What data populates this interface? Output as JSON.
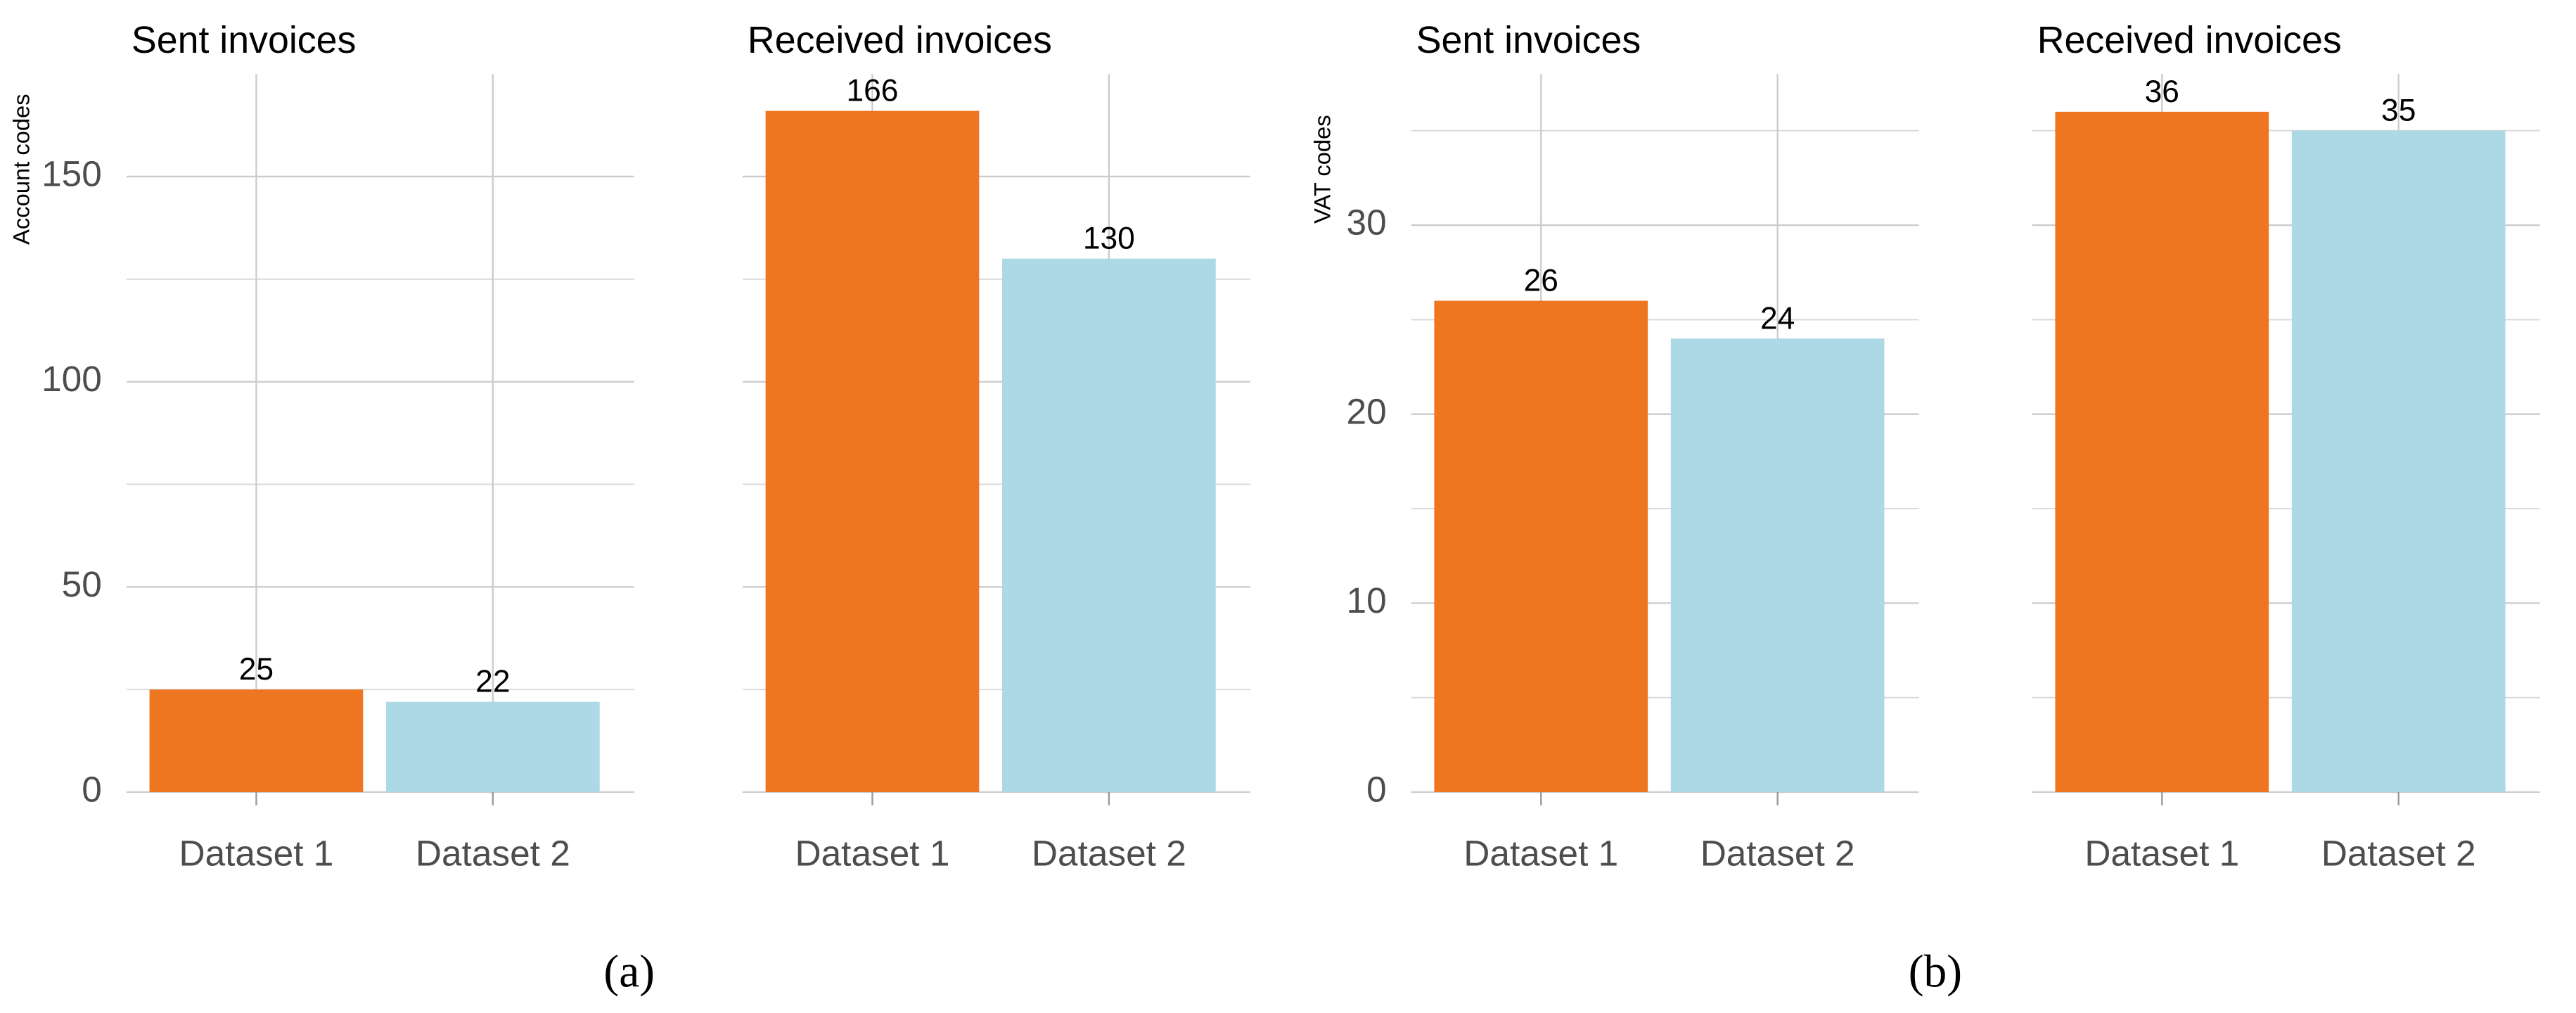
{
  "chart_data": [
    {
      "type": "bar",
      "caption": "(a)",
      "ylabel": "Account codes",
      "categories": [
        "Dataset 1",
        "Dataset 2"
      ],
      "colors": [
        "#ee7621",
        "#add8e6"
      ],
      "ylim": [
        0,
        175
      ],
      "yticks": [
        0,
        50,
        100,
        150
      ],
      "minor_yticks": [
        25,
        75,
        125
      ],
      "grid": true,
      "facets": [
        {
          "title": "Sent invoices",
          "values": [
            25,
            22
          ]
        },
        {
          "title": "Received invoices",
          "values": [
            166,
            130
          ]
        }
      ]
    },
    {
      "type": "bar",
      "caption": "(b)",
      "ylabel": "VAT codes",
      "categories": [
        "Dataset 1",
        "Dataset 2"
      ],
      "colors": [
        "#ee7621",
        "#add8e6"
      ],
      "ylim": [
        0,
        38
      ],
      "yticks": [
        0,
        10,
        20,
        30
      ],
      "minor_yticks": [
        5,
        15,
        25,
        35
      ],
      "grid": true,
      "facets": [
        {
          "title": "Sent invoices",
          "values": [
            26,
            24
          ]
        },
        {
          "title": "Received invoices",
          "values": [
            36,
            35
          ]
        }
      ]
    }
  ]
}
